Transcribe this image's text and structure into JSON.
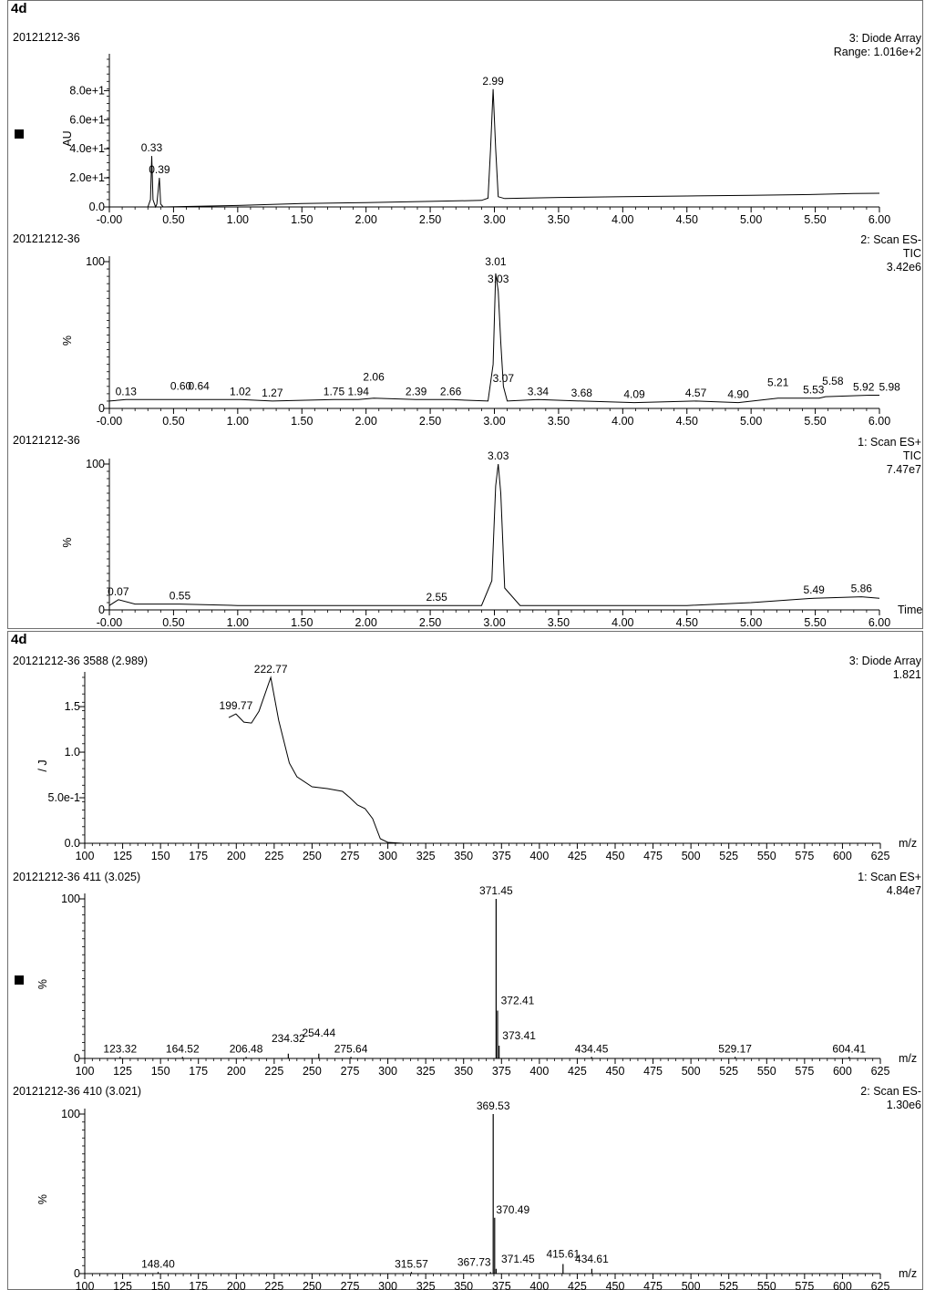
{
  "sheets": [
    {
      "title": "4d",
      "panels": [
        {
          "id": "p1",
          "sample": "20121212-36",
          "trace_lines": [
            "3: Diode Array",
            "Range: 1.016e+2"
          ],
          "ylabel": "AU",
          "show_marker": true,
          "y_ticks": [
            "8.0e+1",
            "6.0e+1",
            "4.0e+1",
            "2.0e+1",
            "0.0"
          ],
          "y_tick_values": [
            80,
            60,
            40,
            20,
            0
          ],
          "ylim": [
            0,
            101.6
          ],
          "xlim": [
            0,
            6
          ],
          "x_tick_labels": [
            "-0.00",
            "0.50",
            "1.00",
            "1.50",
            "2.00",
            "2.50",
            "3.00",
            "3.50",
            "4.00",
            "4.50",
            "5.00",
            "5.50",
            "6.00"
          ],
          "xlabel": ""
        },
        {
          "id": "p2",
          "sample": "20121212-36",
          "trace_lines": [
            "2: Scan ES-",
            "TIC",
            "3.42e6"
          ],
          "ylabel": "%",
          "show_marker": false,
          "y_ticks": [
            "100",
            "0"
          ],
          "y_tick_values": [
            100,
            0
          ],
          "ylim": [
            0,
            100
          ],
          "xlim": [
            0,
            6
          ],
          "x_tick_labels": [
            "-0.00",
            "0.50",
            "1.00",
            "1.50",
            "2.00",
            "2.50",
            "3.00",
            "3.50",
            "4.00",
            "4.50",
            "5.00",
            "5.50",
            "6.00"
          ],
          "xlabel": ""
        },
        {
          "id": "p3",
          "sample": "20121212-36",
          "trace_lines": [
            "1: Scan ES+",
            "TIC",
            "7.47e7"
          ],
          "ylabel": "%",
          "show_marker": false,
          "y_ticks": [
            "100",
            "0"
          ],
          "y_tick_values": [
            100,
            0
          ],
          "ylim": [
            0,
            100
          ],
          "xlim": [
            0,
            6
          ],
          "x_tick_labels": [
            "-0.00",
            "0.50",
            "1.00",
            "1.50",
            "2.00",
            "2.50",
            "3.00",
            "3.50",
            "4.00",
            "4.50",
            "5.00",
            "5.50",
            "6.00"
          ],
          "xlabel": "Time"
        }
      ]
    },
    {
      "title": "4d",
      "panels": [
        {
          "id": "p4",
          "sample": "20121212-36 3588 (2.989)",
          "trace_lines": [
            "3: Diode Array",
            "1.821"
          ],
          "ylabel": "/ J",
          "show_marker": false,
          "y_ticks": [
            "1.5",
            "1.0",
            "5.0e-1",
            "0.0"
          ],
          "y_tick_values": [
            1.5,
            1.0,
            0.5,
            0
          ],
          "ylim": [
            0,
            1.821
          ],
          "xlim": [
            100,
            625
          ],
          "x_tick_labels": [
            "100",
            "125",
            "150",
            "175",
            "200",
            "225",
            "250",
            "275",
            "300",
            "325",
            "350",
            "375",
            "400",
            "425",
            "450",
            "475",
            "500",
            "525",
            "550",
            "575",
            "600",
            "625"
          ],
          "xlabel": "m/z"
        },
        {
          "id": "p5",
          "sample": "20121212-36 411 (3.025)",
          "trace_lines": [
            "1: Scan ES+",
            "4.84e7"
          ],
          "ylabel": "%",
          "show_marker": true,
          "y_ticks": [
            "100",
            "0"
          ],
          "y_tick_values": [
            100,
            0
          ],
          "ylim": [
            0,
            100
          ],
          "xlim": [
            100,
            625
          ],
          "x_tick_labels": [
            "100",
            "125",
            "150",
            "175",
            "200",
            "225",
            "250",
            "275",
            "300",
            "325",
            "350",
            "375",
            "400",
            "425",
            "450",
            "475",
            "500",
            "525",
            "550",
            "575",
            "600",
            "625"
          ],
          "xlabel": "m/z"
        },
        {
          "id": "p6",
          "sample": "20121212-36 410 (3.021)",
          "trace_lines": [
            "2: Scan ES-",
            "1.30e6"
          ],
          "ylabel": "%",
          "show_marker": false,
          "y_ticks": [
            "100",
            "0"
          ],
          "y_tick_values": [
            100,
            0
          ],
          "ylim": [
            0,
            100
          ],
          "xlim": [
            100,
            625
          ],
          "x_tick_labels": [
            "100",
            "125",
            "150",
            "175",
            "200",
            "225",
            "250",
            "275",
            "300",
            "325",
            "350",
            "375",
            "400",
            "425",
            "450",
            "475",
            "500",
            "525",
            "550",
            "575",
            "600",
            "625"
          ],
          "xlabel": "m/z"
        }
      ]
    }
  ],
  "chart_data": [
    {
      "type": "line",
      "panel": "p1",
      "title": "3: Diode Array",
      "ylabel": "AU",
      "xlim": [
        0,
        6
      ],
      "ylim": [
        0,
        101.6
      ],
      "x": [
        0.0,
        0.3,
        0.32,
        0.33,
        0.34,
        0.36,
        0.37,
        0.39,
        0.4,
        0.42,
        1.0,
        1.5,
        2.0,
        2.5,
        2.9,
        2.95,
        2.97,
        2.99,
        3.01,
        3.03,
        3.08,
        3.5,
        4.0,
        4.5,
        5.0,
        5.5,
        5.8,
        6.0
      ],
      "y": [
        0.0,
        0.0,
        5.0,
        35.0,
        5.0,
        0.0,
        2.0,
        20.0,
        2.0,
        0.0,
        1.0,
        2.3,
        3.0,
        3.8,
        4.5,
        6.0,
        40.0,
        81.0,
        40.0,
        7.0,
        5.8,
        6.5,
        7.0,
        7.5,
        8.0,
        8.6,
        9.2,
        9.4
      ],
      "peak_labels": [
        {
          "x": 0.33,
          "text": "0.33"
        },
        {
          "x": 0.39,
          "text": "0.39"
        },
        {
          "x": 2.99,
          "text": "2.99"
        }
      ]
    },
    {
      "type": "line",
      "panel": "p2",
      "title": "2: Scan ES- TIC",
      "ylabel": "%",
      "xlim": [
        0,
        6
      ],
      "ylim": [
        0,
        100
      ],
      "x": [
        0.0,
        0.13,
        0.6,
        0.64,
        1.02,
        1.27,
        1.75,
        1.94,
        2.06,
        2.39,
        2.66,
        2.95,
        2.99,
        3.01,
        3.03,
        3.05,
        3.07,
        3.1,
        3.34,
        3.68,
        4.09,
        4.57,
        4.9,
        5.21,
        5.53,
        5.58,
        5.92,
        5.98,
        6.0
      ],
      "y": [
        5,
        6,
        6,
        6,
        6,
        5,
        6,
        6,
        7,
        6,
        6,
        5,
        30,
        92,
        80,
        45,
        15,
        5,
        6,
        5,
        4,
        5,
        4,
        7,
        7,
        8,
        9,
        9,
        9
      ],
      "peak_labels": [
        {
          "x": 0.13,
          "text": "0.13"
        },
        {
          "x": 0.6,
          "text": "0.60"
        },
        {
          "x": 0.64,
          "text": "0.64"
        },
        {
          "x": 1.02,
          "text": "1.02"
        },
        {
          "x": 1.27,
          "text": "1.27"
        },
        {
          "x": 1.75,
          "text": "1.75"
        },
        {
          "x": 1.94,
          "text": "1.94"
        },
        {
          "x": 2.06,
          "text": "2.06"
        },
        {
          "x": 2.39,
          "text": "2.39"
        },
        {
          "x": 2.66,
          "text": "2.66"
        },
        {
          "x": 3.01,
          "text": "3.01"
        },
        {
          "x": 3.03,
          "text": "3.03"
        },
        {
          "x": 3.07,
          "text": "3.07"
        },
        {
          "x": 3.34,
          "text": "3.34"
        },
        {
          "x": 3.68,
          "text": "3.68"
        },
        {
          "x": 4.09,
          "text": "4.09"
        },
        {
          "x": 4.57,
          "text": "4.57"
        },
        {
          "x": 4.9,
          "text": "4.90"
        },
        {
          "x": 5.21,
          "text": "5.21"
        },
        {
          "x": 5.53,
          "text": "5.53"
        },
        {
          "x": 5.58,
          "text": "5.58"
        },
        {
          "x": 5.92,
          "text": "5.92"
        },
        {
          "x": 5.98,
          "text": "5.98"
        }
      ]
    },
    {
      "type": "line",
      "panel": "p3",
      "title": "1: Scan ES+ TIC",
      "ylabel": "%",
      "xlabel": "Time",
      "xlim": [
        0,
        6
      ],
      "ylim": [
        0,
        100
      ],
      "x": [
        0.0,
        0.07,
        0.2,
        0.55,
        1.0,
        1.5,
        2.0,
        2.55,
        2.9,
        2.98,
        3.01,
        3.03,
        3.05,
        3.08,
        3.2,
        3.5,
        4.0,
        4.5,
        5.0,
        5.49,
        5.86,
        6.0
      ],
      "y": [
        3,
        7,
        4,
        4,
        3,
        3,
        3,
        3,
        3,
        20,
        85,
        100,
        80,
        15,
        3,
        3,
        3,
        3,
        5,
        8,
        9,
        8
      ],
      "peak_labels": [
        {
          "x": 0.07,
          "text": "0.07"
        },
        {
          "x": 0.55,
          "text": "0.55"
        },
        {
          "x": 2.55,
          "text": "2.55"
        },
        {
          "x": 3.03,
          "text": "3.03"
        },
        {
          "x": 5.49,
          "text": "5.49"
        },
        {
          "x": 5.86,
          "text": "5.86"
        }
      ]
    },
    {
      "type": "line",
      "panel": "p4",
      "title": "3: Diode Array",
      "xlabel": "m/z",
      "xlim": [
        100,
        625
      ],
      "ylim": [
        0,
        1.821
      ],
      "x": [
        195,
        199.77,
        205,
        210,
        215,
        222.77,
        228,
        235,
        240,
        250,
        260,
        270,
        275,
        280,
        285,
        290,
        295,
        300,
        310
      ],
      "y": [
        1.38,
        1.42,
        1.33,
        1.32,
        1.45,
        1.82,
        1.35,
        0.88,
        0.73,
        0.62,
        0.6,
        0.57,
        0.5,
        0.42,
        0.38,
        0.27,
        0.05,
        0.01,
        0.0
      ],
      "peak_labels": [
        {
          "x": 199.77,
          "text": "199.77"
        },
        {
          "x": 222.77,
          "text": "222.77"
        }
      ]
    },
    {
      "type": "bar",
      "panel": "p5",
      "title": "1: Scan ES+",
      "xlabel": "m/z",
      "xlim": [
        100,
        625
      ],
      "ylim": [
        0,
        100
      ],
      "x": [
        123.32,
        164.52,
        206.48,
        234.32,
        254.44,
        275.64,
        371.45,
        372.41,
        373.41,
        434.45,
        529.17,
        604.41
      ],
      "values": [
        1,
        1,
        1,
        3,
        3,
        1,
        100,
        30,
        8,
        1,
        1,
        1
      ],
      "peak_labels": [
        {
          "x": 123.32,
          "text": "123.32"
        },
        {
          "x": 164.52,
          "text": "164.52"
        },
        {
          "x": 206.48,
          "text": "206.48"
        },
        {
          "x": 234.32,
          "text": "234.32"
        },
        {
          "x": 254.44,
          "text": "254.44"
        },
        {
          "x": 275.64,
          "text": "275.64"
        },
        {
          "x": 371.45,
          "text": "371.45"
        },
        {
          "x": 372.41,
          "text": "372.41"
        },
        {
          "x": 373.41,
          "text": "373.41"
        },
        {
          "x": 434.45,
          "text": "434.45"
        },
        {
          "x": 529.17,
          "text": "529.17"
        },
        {
          "x": 604.41,
          "text": "604.41"
        }
      ]
    },
    {
      "type": "bar",
      "panel": "p6",
      "title": "2: Scan ES-",
      "xlabel": "m/z",
      "xlim": [
        100,
        625
      ],
      "ylim": [
        0,
        100
      ],
      "x": [
        148.4,
        315.57,
        367.73,
        369.53,
        370.49,
        371.45,
        415.61,
        434.61
      ],
      "values": [
        1,
        1,
        1,
        100,
        35,
        3,
        6,
        3
      ],
      "peak_labels": [
        {
          "x": 148.4,
          "text": "148.40"
        },
        {
          "x": 315.57,
          "text": "315.57"
        },
        {
          "x": 367.73,
          "text": "367.73"
        },
        {
          "x": 369.53,
          "text": "369.53"
        },
        {
          "x": 370.49,
          "text": "370.49"
        },
        {
          "x": 371.45,
          "text": "371.45"
        },
        {
          "x": 415.61,
          "text": "415.61"
        },
        {
          "x": 434.61,
          "text": "434.61"
        }
      ]
    }
  ]
}
